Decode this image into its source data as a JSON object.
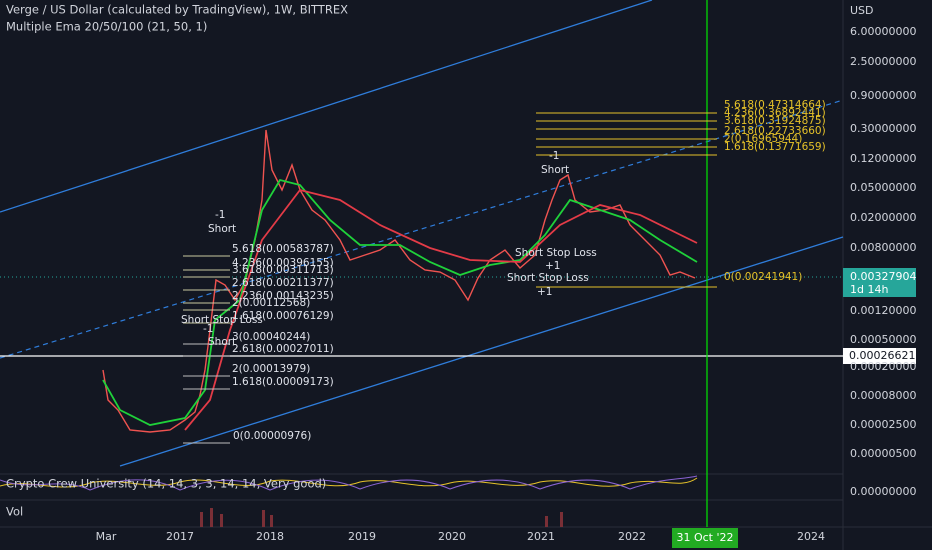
{
  "header": {
    "title": "Verge / US Dollar (calculated by TradingView), 1W, BITTREX",
    "indicator": "Multiple Ema 20/50/100 (21, 50, 1)"
  },
  "price_axis": {
    "unit": "USD",
    "labels": [
      "6.00000000",
      "2.50000000",
      "0.90000000",
      "0.30000000",
      "0.12000000",
      "0.05000000",
      "0.02000000",
      "0.00800000",
      "0.00120000",
      "0.00050000",
      "0.00020000",
      "0.00008000",
      "0.00002500",
      "0.00000500",
      "0.00000000"
    ]
  },
  "current_price": {
    "label": "0.00327904",
    "countdown": "1d 14h"
  },
  "crosshair_price": "0.00026621",
  "time_axis": {
    "labels": [
      "Mar",
      "2017",
      "2018",
      "2019",
      "2020",
      "2021",
      "2022",
      "2024"
    ]
  },
  "crosshair_date": "31 Oct '22",
  "fib_left": [
    "5.618(0.00583787)",
    "4.236(0.00396155)",
    "3.618(0.00311713)",
    "2.618(0.00211377)",
    "2.236(0.00143235)",
    "2(0.00112568)",
    "1.618(0.00076129)",
    "3(0.00040244)",
    "2.618(0.00027011)",
    "2(0.00013979)",
    "1.618(0.00009173)",
    "0(0.00000976)"
  ],
  "fib_right": [
    "5.618(0.47314664)",
    "4.236(0.36892441)",
    "3.618(0.31924875)",
    "2.618(0.22733660)",
    "2(0.16965944)",
    "1.618(0.13771659)",
    "0(0.00241941)"
  ],
  "annotations": [
    "-1",
    "Short",
    "Short Stop Loss",
    "-1",
    "Short",
    "-1",
    "Short",
    "Short Stop Loss",
    "+1",
    "Short Stop Loss",
    "+1"
  ],
  "oscillator": "Crypto Crew University (14, 14, 3, 3, 14, 14, Very good)",
  "volume": "Vol"
}
